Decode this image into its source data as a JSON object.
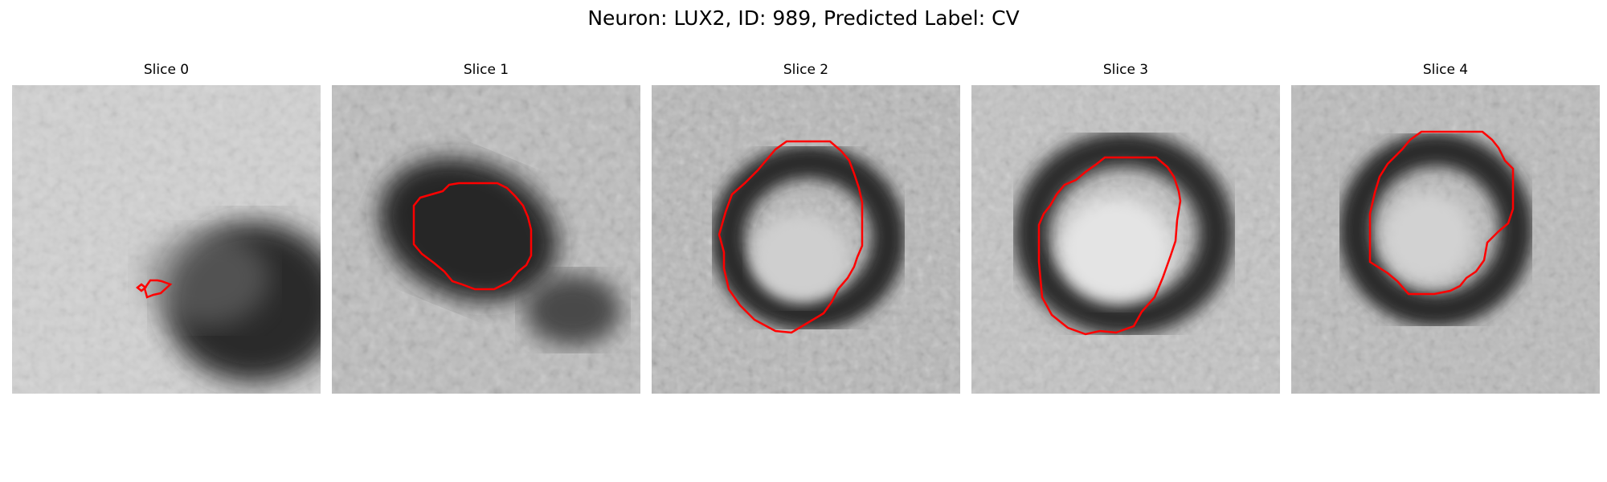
{
  "figure": {
    "title": "Neuron: LUX2, ID: 989, Predicted Label: CV"
  },
  "panels": [
    {
      "title": "Slice 0",
      "image": "grayscale microscopy slice with a dark cell body toward the lower right and a small red outline on its left side"
    },
    {
      "title": "Slice 1",
      "image": "grayscale microscopy slice with a dark irregular region enclosed by a red outline"
    },
    {
      "title": "Slice 2",
      "image": "grayscale microscopy slice with a dark ring around a lighter center, enclosed by a red outline"
    },
    {
      "title": "Slice 3",
      "image": "grayscale microscopy slice with a dark ring and bright center, enclosed by a red outline"
    },
    {
      "title": "Slice 4",
      "image": "grayscale microscopy slice with a dark ring around a lighter center, enclosed by a red outline"
    }
  ],
  "colors": {
    "contour": "#ff0000",
    "background": "#ffffff"
  }
}
